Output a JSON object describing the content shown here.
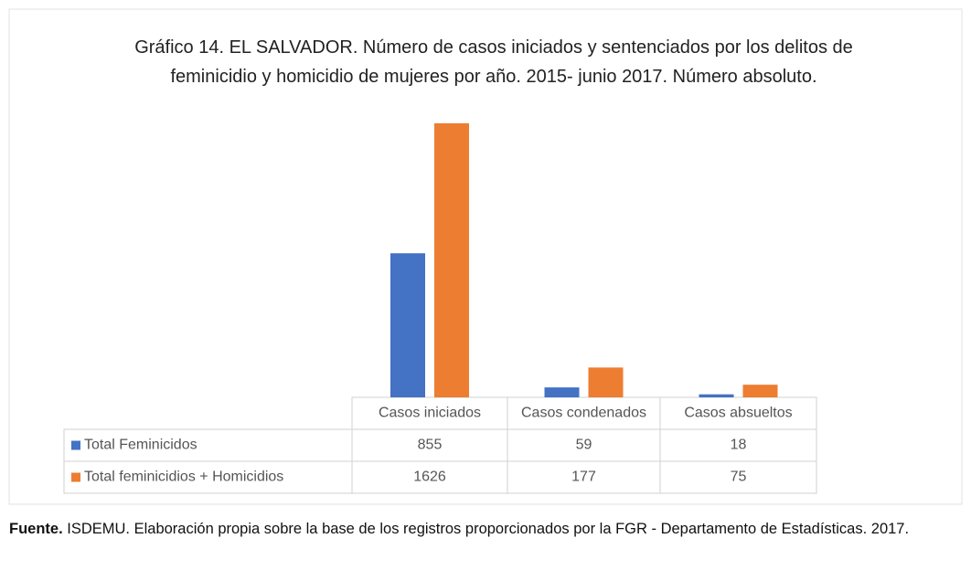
{
  "chart_data": {
    "type": "bar",
    "title": "Gráfico 14. EL SALVADOR. Número de casos iniciados y sentenciados por los delitos de feminicidio y homicidio de mujeres por año. 2015- junio 2017. Número absoluto.",
    "categories": [
      "Casos iniciados",
      "Casos condenados",
      "Casos absueltos"
    ],
    "series": [
      {
        "name": "Total Feminicidos",
        "color": "#4472c4",
        "values": [
          855,
          59,
          18
        ]
      },
      {
        "name": "Total feminicidios + Homicidios",
        "color": "#ed7d31",
        "values": [
          1626,
          177,
          75
        ]
      }
    ],
    "source_label": "Fuente.",
    "source_text": "ISDEMU. Elaboración propia sobre la base de los registros proporcionados por la FGR - Departamento de Estadísticas. 2017."
  }
}
